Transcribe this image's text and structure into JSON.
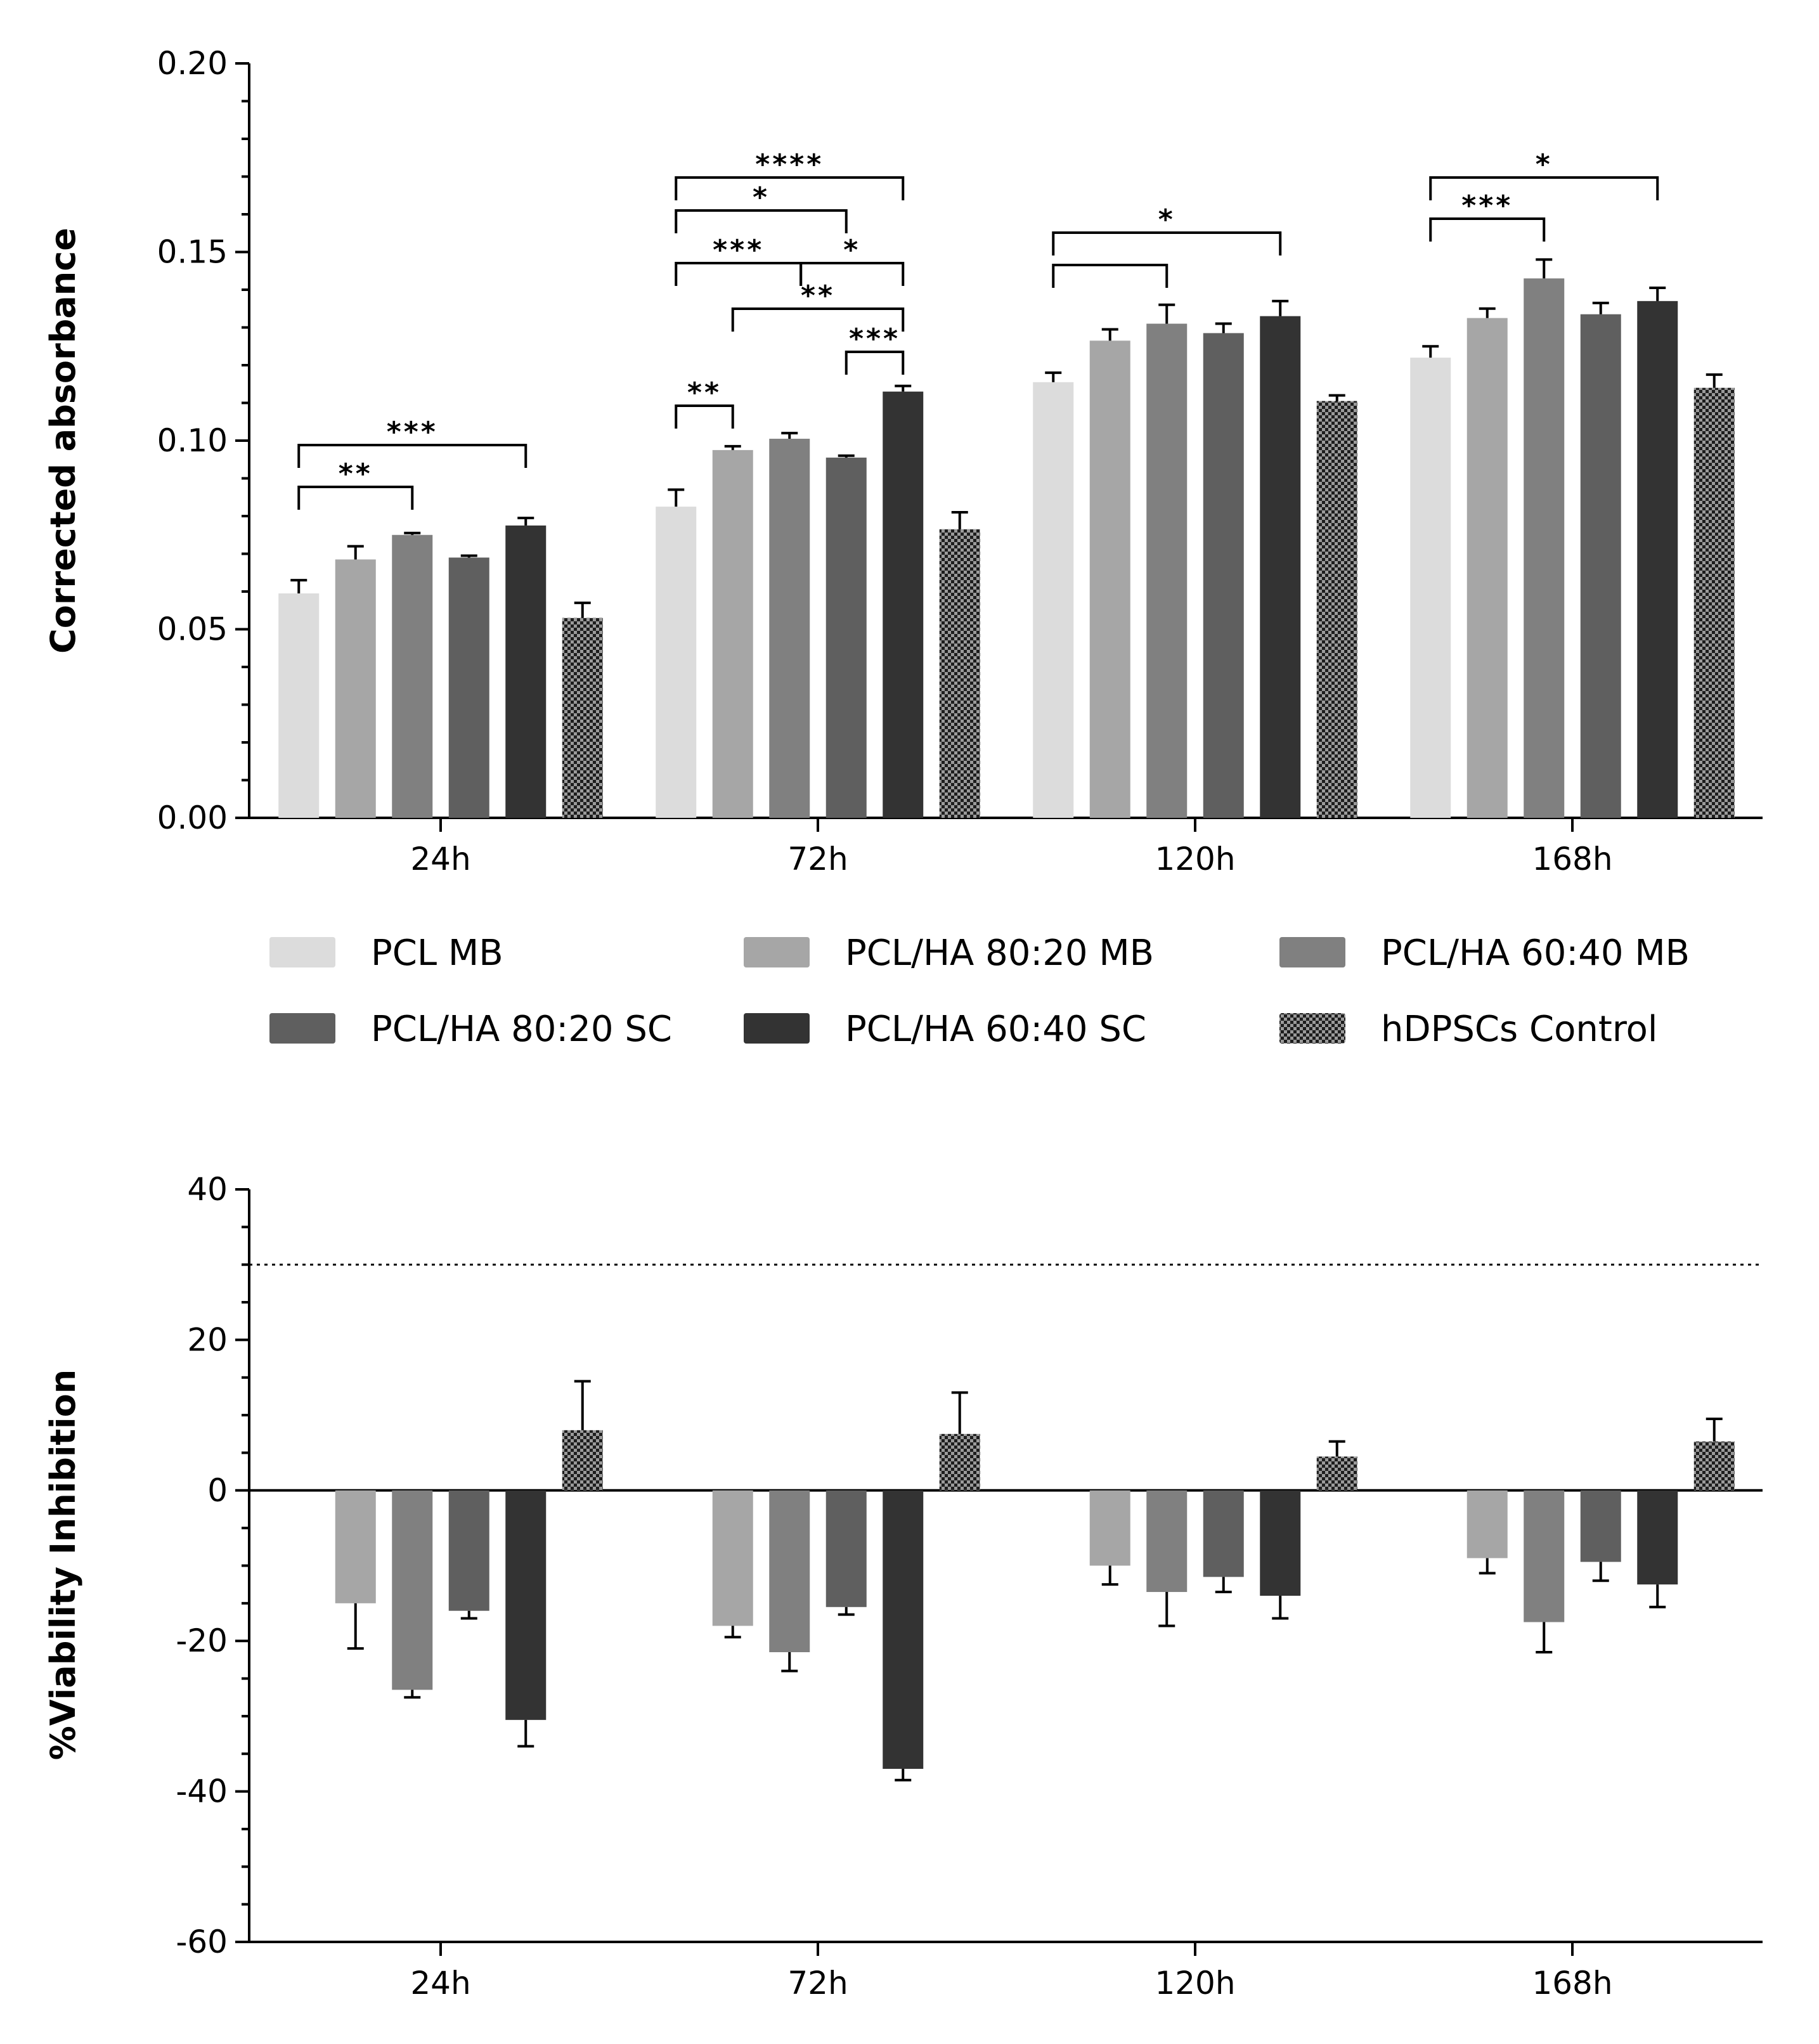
{
  "figure": {
    "series_colors": {
      "PCL MB": "#dcdcdc",
      "PCL/HA 80:20 MB": "#a6a6a6",
      "PCL/HA 60:40 MB": "#808080",
      "PCL/HA 80:20 SC": "#5f5f5f",
      "PCL/HA 60:40 SC": "#333333",
      "hDPSCs Control": "checkered"
    },
    "legend": [
      "PCL MB",
      "PCL/HA 80:20 MB",
      "PCL/HA 60:40 MB",
      "PCL/HA 80:20 SC",
      "PCL/HA 60:40 SC",
      "hDPSCs Control"
    ]
  },
  "chart_data": [
    {
      "type": "bar",
      "title": "",
      "xlabel": "",
      "ylabel": "Corrected absorbance",
      "ylim": [
        0,
        0.2
      ],
      "yticks": [
        "0.00",
        "0.05",
        "0.10",
        "0.15",
        "0.20"
      ],
      "categories": [
        "24h",
        "72h",
        "120h",
        "168h"
      ],
      "series": [
        {
          "name": "PCL MB",
          "values": [
            0.0595,
            0.0825,
            0.1155,
            0.122
          ],
          "errors": [
            0.0035,
            0.0045,
            0.0025,
            0.003
          ]
        },
        {
          "name": "PCL/HA 80:20 MB",
          "values": [
            0.0685,
            0.0975,
            0.1265,
            0.1325
          ],
          "errors": [
            0.0035,
            0.001,
            0.003,
            0.0025
          ]
        },
        {
          "name": "PCL/HA 60:40 MB",
          "values": [
            0.075,
            0.1005,
            0.131,
            0.143
          ],
          "errors": [
            0.0005,
            0.0015,
            0.005,
            0.005
          ]
        },
        {
          "name": "PCL/HA 80:20 SC",
          "values": [
            0.069,
            0.0955,
            0.1285,
            0.1335
          ],
          "errors": [
            0.0005,
            0.0005,
            0.0025,
            0.003
          ]
        },
        {
          "name": "PCL/HA 60:40 SC",
          "values": [
            0.0775,
            0.113,
            0.133,
            0.137
          ],
          "errors": [
            0.002,
            0.0015,
            0.004,
            0.0035
          ]
        },
        {
          "name": "hDPSCs Control",
          "values": [
            0.053,
            0.0765,
            0.1105,
            0.114
          ],
          "errors": [
            0.004,
            0.0045,
            0.0015,
            0.0035
          ]
        }
      ],
      "significance": [
        {
          "category": "24h",
          "from": 0,
          "to": 2,
          "label": "**"
        },
        {
          "category": "24h",
          "from": 0,
          "to": 4,
          "label": "***"
        },
        {
          "category": "72h",
          "from": 0,
          "to": 1,
          "label": "**"
        },
        {
          "category": "72h",
          "from": 3,
          "to": 4,
          "label": "***"
        },
        {
          "category": "72h",
          "from": 1,
          "to": 4,
          "label": "**"
        },
        {
          "category": "72h",
          "from": 0,
          "to": 2,
          "label": "***"
        },
        {
          "category": "72h",
          "from": 2,
          "to": 4,
          "label": "*"
        },
        {
          "category": "72h",
          "from": 0,
          "to": 3,
          "label": "*"
        },
        {
          "category": "72h",
          "from": 0,
          "to": 4,
          "label": "****"
        },
        {
          "category": "120h",
          "from": 0,
          "to": 2,
          "label": ""
        },
        {
          "category": "120h",
          "from": 0,
          "to": 4,
          "label": "*"
        },
        {
          "category": "168h",
          "from": 0,
          "to": 2,
          "label": "***"
        },
        {
          "category": "168h",
          "from": 0,
          "to": 4,
          "label": "*"
        }
      ]
    },
    {
      "type": "bar",
      "title": "",
      "xlabel": "",
      "ylabel": "%Viability Inhibition",
      "ylim": [
        -60,
        40
      ],
      "yticks": [
        "-60",
        "-40",
        "-20",
        "0",
        "20",
        "40"
      ],
      "reference_line": 30,
      "categories": [
        "24h",
        "72h",
        "120h",
        "168h"
      ],
      "series": [
        {
          "name": "PCL/HA 80:20 MB",
          "values": [
            -15.0,
            -18.0,
            -10.0,
            -9.0
          ],
          "errors": [
            6.0,
            1.5,
            2.5,
            2.0
          ]
        },
        {
          "name": "PCL/HA 60:40 MB",
          "values": [
            -26.5,
            -21.5,
            -13.5,
            -17.5
          ],
          "errors": [
            1.0,
            2.5,
            4.5,
            4.0
          ]
        },
        {
          "name": "PCL/HA 80:20 SC",
          "values": [
            -16.0,
            -15.5,
            -11.5,
            -9.5
          ],
          "errors": [
            1.0,
            1.0,
            2.0,
            2.5
          ]
        },
        {
          "name": "PCL/HA 60:40 SC",
          "values": [
            -30.5,
            -37.0,
            -14.0,
            -12.5
          ],
          "errors": [
            3.5,
            1.5,
            3.0,
            3.0
          ]
        },
        {
          "name": "hDPSCs Control",
          "values": [
            8.0,
            7.5,
            4.5,
            6.5
          ],
          "errors": [
            6.5,
            5.5,
            2.0,
            3.0
          ]
        }
      ]
    }
  ]
}
